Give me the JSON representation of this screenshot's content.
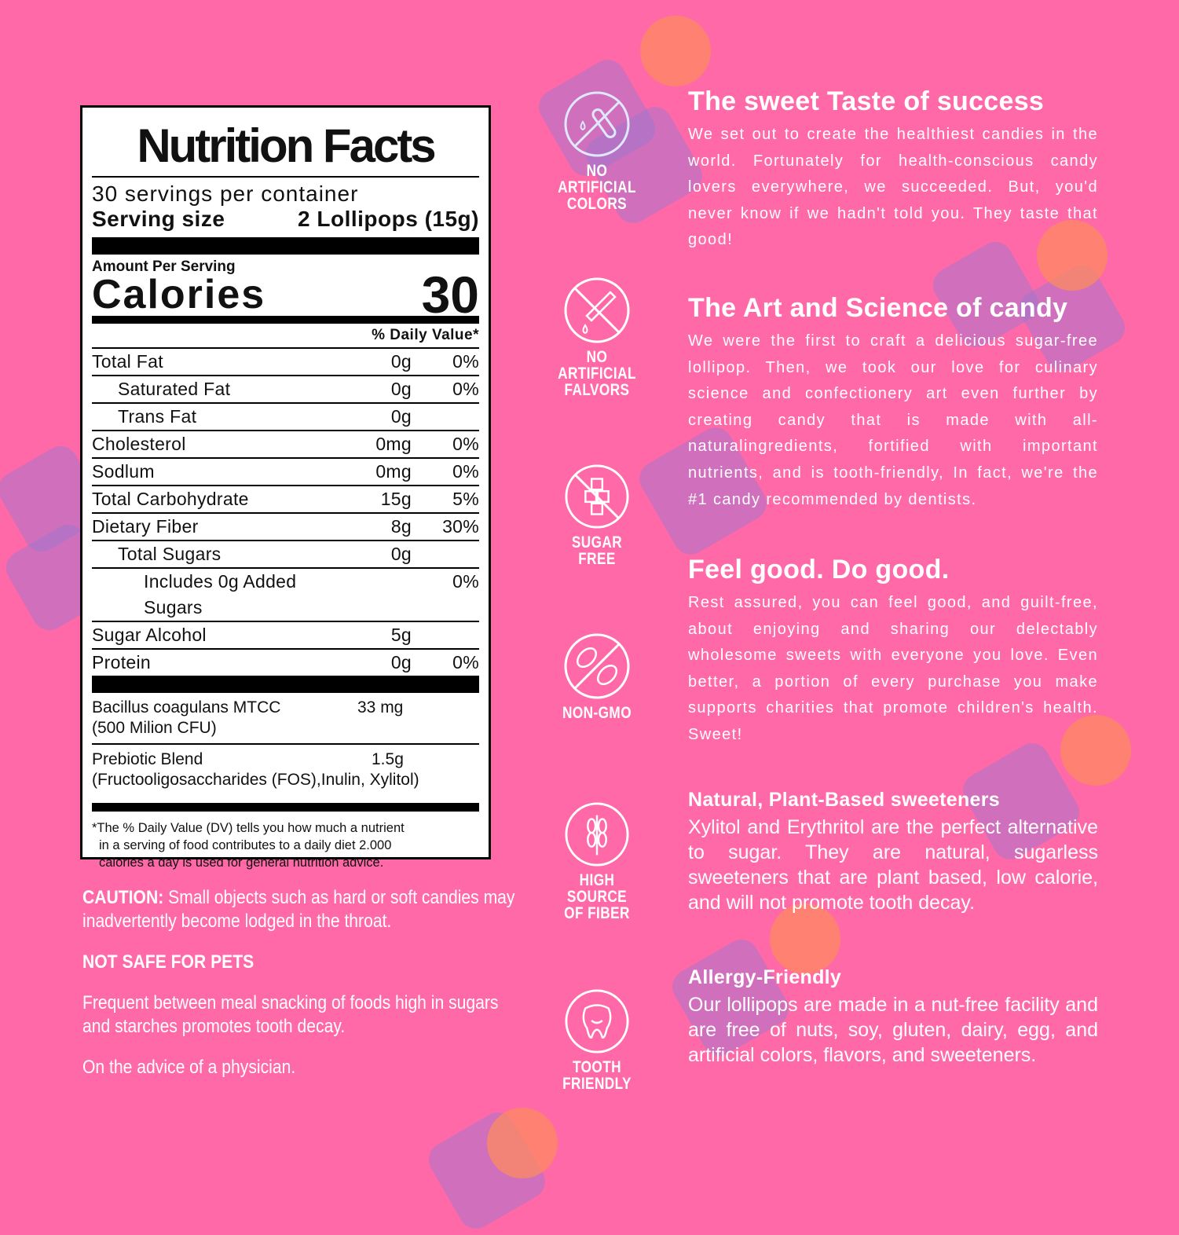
{
  "nutrition": {
    "title": "Nutrition Facts",
    "servings": "30 servings per container",
    "serving_size_label": "Serving size",
    "serving_size_value": "2 Lollipops (15g)",
    "amount_per_serving": "Amount Per Serving",
    "calories_label": "Calories",
    "calories_value": "30",
    "dv_header": "% Daily Value*",
    "rows": [
      {
        "name": "Total Fat",
        "amount": "0g",
        "dv": "0%"
      },
      {
        "name": "Saturated Fat",
        "amount": "0g",
        "dv": "0%"
      },
      {
        "name": "Trans Fat",
        "amount": "0g",
        "dv": ""
      },
      {
        "name": "Cholesterol",
        "amount": "0mg",
        "dv": "0%"
      },
      {
        "name": "Sodlum",
        "amount": "0mg",
        "dv": "0%"
      },
      {
        "name": "Total Carbohydrate",
        "amount": "15g",
        "dv": "5%"
      },
      {
        "name": "Dietary Fiber",
        "amount": "8g",
        "dv": "30%"
      },
      {
        "name": "Total Sugars",
        "amount": "0g",
        "dv": ""
      },
      {
        "name": "Includes 0g Added Sugars",
        "amount": "",
        "dv": "0%"
      },
      {
        "name": "Sugar Alcohol",
        "amount": "5g",
        "dv": ""
      },
      {
        "name": "Protein",
        "amount": "0g",
        "dv": "0%"
      }
    ],
    "probiotic_name": "Bacillus coagulans MTCC",
    "probiotic_sub": "(500 Milion CFU)",
    "probiotic_amount": "33 mg",
    "prebiotic_name": "Prebiotic Blend",
    "prebiotic_sub": "(Fructooligosaccharides (FOS),Inulin, Xylitol)",
    "prebiotic_amount": "1.5g",
    "footnote": [
      "*The % Daily Value (DV) tells you how much a nutrient",
      "in a serving of food contributes to a daily diet 2.000",
      "calories a day is used for general nutrition advice."
    ]
  },
  "notes": {
    "caution_label": "CAUTION:",
    "caution_text": " Small objects such as hard or soft candies may inadvertently become lodged in the throat.",
    "pets": "NOT SAFE FOR PETS",
    "snacking": "Frequent between meal snacking of foods high in sugars and starches promotes tooth decay.",
    "physician": "On the advice of a physician."
  },
  "badges": [
    {
      "icon": "no-artificial-colors-icon",
      "line1": "NO ARTIFICIAL",
      "line2": "COLORS"
    },
    {
      "icon": "no-artificial-flavors-icon",
      "line1": "NO ARTIFICIAL",
      "line2": "FALVORS"
    },
    {
      "icon": "sugar-free-icon",
      "line1": "SUGAR FREE",
      "line2": ""
    },
    {
      "icon": "non-gmo-icon",
      "line1": "NON-GMO",
      "line2": ""
    },
    {
      "icon": "high-fiber-icon",
      "line1": "HIGH SOURCE",
      "line2": "OF FIBER"
    },
    {
      "icon": "tooth-friendly-icon",
      "line1": "TOOTH",
      "line2": "FRIENDLY"
    }
  ],
  "sections": [
    {
      "title": "The sweet Taste of success",
      "body": "We set out to create the healthiest candies in the world. Fortunately for health-conscious candy lovers everywhere, we succeeded. But, you'd never know if we hadn't told you. They taste that good!"
    },
    {
      "title": "The Art and Science of candy",
      "body": "We were the first to craft a delicious sugar-free lollipop. Then, we took our love for culinary science and confectionery art even further by creating candy that is made with all-naturalingredients, fortified with important nutrients, and is tooth-friendly, In fact, we're the #1 candy recommended by dentists."
    },
    {
      "title": "Feel good. Do good.",
      "body": "Rest assured, you can feel good, and guilt-free, about enjoying and sharing our delectably wholesome sweets with everyone you love. Even better, a portion of every purchase you make supports charities that promote children's health. Sweet!"
    },
    {
      "title": "Natural, Plant-Based sweeteners",
      "body": "Xylitol and Erythritol are the perfect alternative to sugar. They are natural, sugarless sweeteners that are plant based, low calorie, and will not promote tooth decay."
    },
    {
      "title": "Allergy-Friendly",
      "body": "Our lollipops are made in a nut-free facility and are free of nuts, soy, gluten, dairy, egg, and artificial colors, flavors, and sweeteners."
    }
  ],
  "colors": {
    "background": "#ff69a8",
    "text": "#ffffff",
    "deco_square": "#9678d2",
    "deco_sun": "#ff8c5a"
  }
}
